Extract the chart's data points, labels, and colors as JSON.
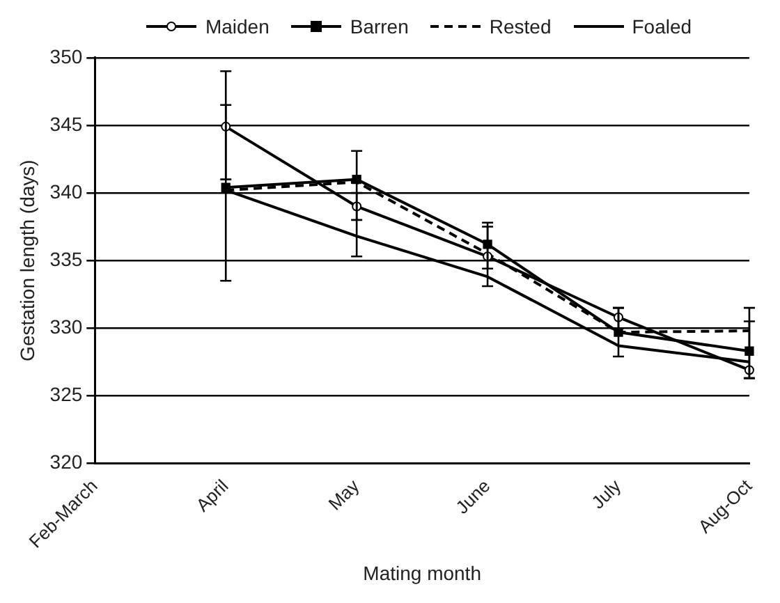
{
  "chart_data": {
    "type": "line",
    "xlabel": "Mating month",
    "ylabel": "Gestation length (days)",
    "categories": [
      "Feb-March",
      "April",
      "May",
      "June",
      "July",
      "Aug-Oct"
    ],
    "ylim": [
      320,
      350
    ],
    "yticks": [
      320,
      325,
      330,
      335,
      340,
      345,
      350
    ],
    "grid": "y",
    "legend": "top",
    "series": [
      {
        "name": "Maiden",
        "color": "#000000",
        "marker": "circle",
        "line_style": "solid",
        "values": [
          null,
          344.9,
          339.0,
          335.3,
          330.8,
          326.9
        ],
        "errors": [
          null,
          [
            341.0,
            349.0
          ],
          [
            338.0,
            340.0
          ],
          [
            333.1,
            337.5
          ],
          [
            330.0,
            331.5
          ],
          [
            326.3,
            330.5
          ]
        ]
      },
      {
        "name": "Barren",
        "color": "#000000",
        "marker": "square",
        "line_style": "solid",
        "values": [
          null,
          340.4,
          341.0,
          336.2,
          329.7,
          328.3
        ],
        "errors": [
          null,
          [
            333.5,
            346.5
          ],
          [
            335.3,
            343.1
          ],
          [
            334.4,
            337.8
          ],
          [
            327.9,
            331.5
          ],
          [
            326.3,
            331.5
          ]
        ]
      },
      {
        "name": "Rested",
        "color": "#000000",
        "marker": "none",
        "line_style": "dashed",
        "values": [
          null,
          340.2,
          340.8,
          335.5,
          329.7,
          329.8
        ]
      },
      {
        "name": "Foaled",
        "color": "#000000",
        "marker": "none",
        "line_style": "solid",
        "values": [
          null,
          340.2,
          336.8,
          333.8,
          328.7,
          327.5
        ]
      }
    ]
  }
}
